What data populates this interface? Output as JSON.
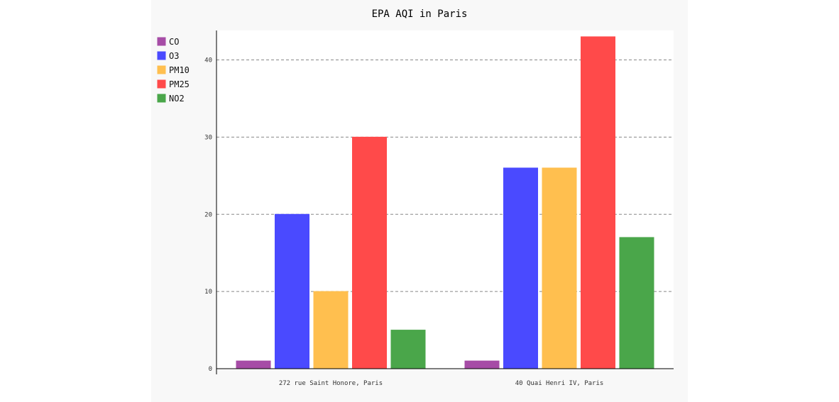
{
  "chart_data": {
    "type": "bar",
    "title": "EPA AQI in Paris",
    "xlabel": "",
    "ylabel": "",
    "ylim": [
      0,
      44
    ],
    "yticks": [
      0,
      10,
      20,
      30,
      40
    ],
    "grid": true,
    "legend_position": "top-left",
    "categories": [
      "272 rue Saint Honore, Paris",
      "40 Quai Henri IV, Paris"
    ],
    "series": [
      {
        "name": "CO",
        "color": "#a64ca6",
        "values": [
          1,
          1
        ]
      },
      {
        "name": "O3",
        "color": "#4a4aff",
        "values": [
          20,
          26
        ]
      },
      {
        "name": "PM10",
        "color": "#ffbf4f",
        "values": [
          10,
          26
        ]
      },
      {
        "name": "PM25",
        "color": "#ff4a4a",
        "values": [
          30,
          43
        ]
      },
      {
        "name": "NO2",
        "color": "#4aa64a",
        "values": [
          5,
          17
        ]
      }
    ]
  }
}
